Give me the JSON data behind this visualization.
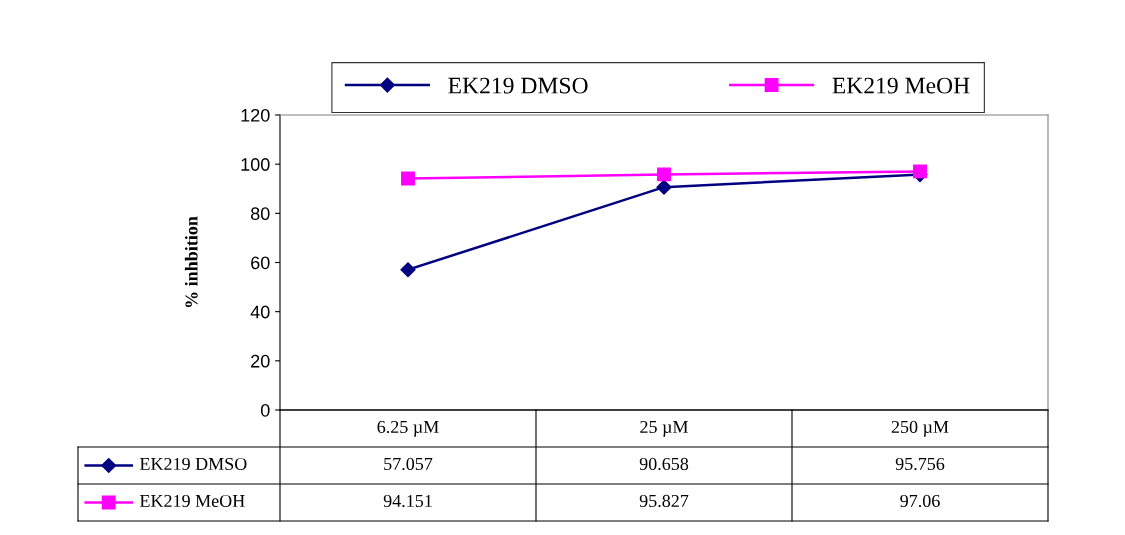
{
  "chart_data": {
    "type": "line",
    "ylabel": "% inhbition",
    "categories": [
      "6.25 µM",
      "25 µM",
      "250 µM"
    ],
    "series": [
      {
        "name": "EK219 DMSO",
        "color": "#000080",
        "marker": "diamond",
        "values": [
          57.057,
          90.658,
          95.756
        ]
      },
      {
        "name": "EK219 MeOH",
        "color": "#ff00ff",
        "marker": "square",
        "values": [
          94.151,
          95.827,
          97.06
        ]
      }
    ],
    "ylim": [
      0,
      120
    ],
    "yticks": [
      0,
      20,
      40,
      60,
      80,
      100,
      120
    ],
    "grid": false,
    "legend": "top",
    "data_labels": true,
    "line_style": "solid"
  }
}
